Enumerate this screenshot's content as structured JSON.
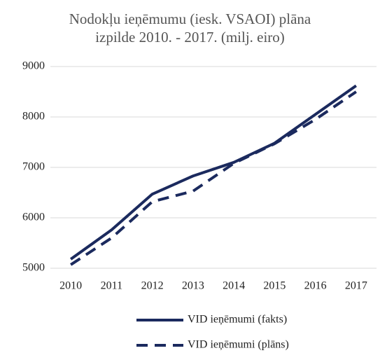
{
  "chart_data": {
    "type": "line",
    "title": "Nodokļu ieņēmumu (iesk. VSAOI) plāna izpilde 2010. - 2017. (milj. eiro)",
    "categories": [
      "2010",
      "2011",
      "2012",
      "2013",
      "2014",
      "2015",
      "2016",
      "2017"
    ],
    "series": [
      {
        "name": "VID ieņēmumi (fakts)",
        "color": "#1b2a5e",
        "dash": false,
        "values": [
          5180,
          5760,
          6470,
          6830,
          7100,
          7480,
          8050,
          8620
        ]
      },
      {
        "name": "VID ieņēmumi (plāns)",
        "color": "#1b2a5e",
        "dash": true,
        "values": [
          5070,
          5600,
          6320,
          6530,
          7080,
          7470,
          7950,
          8500
        ]
      }
    ],
    "ylim": [
      5000,
      9000
    ],
    "yticks": [
      5000,
      6000,
      7000,
      8000,
      9000
    ],
    "grid": true,
    "legend": "bottom"
  }
}
